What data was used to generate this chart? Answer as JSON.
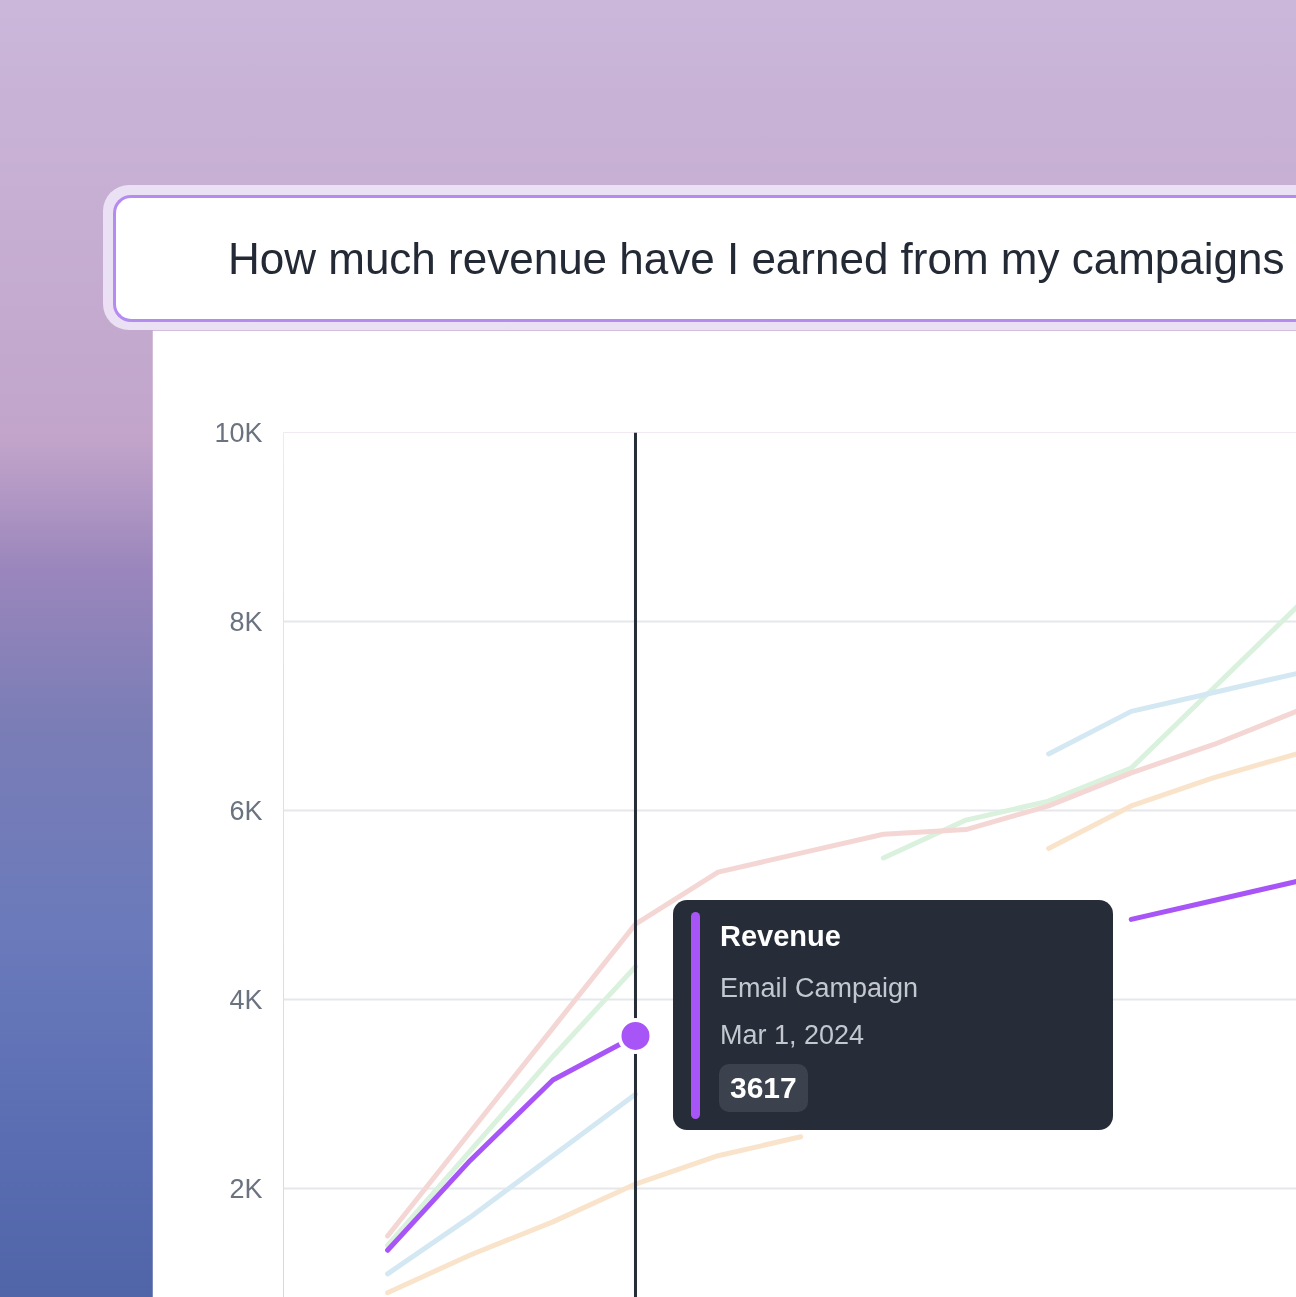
{
  "chart_data": {
    "type": "line",
    "title": "How much revenue have I earned from my campaigns",
    "categories": [
      null,
      null,
      null,
      null,
      null,
      null,
      null,
      null,
      null,
      null,
      null,
      null
    ],
    "ylim": [
      850,
      10000
    ],
    "yticks": [
      {
        "value": 2000,
        "label": "2K"
      },
      {
        "value": 4000,
        "label": "4K"
      },
      {
        "value": 6000,
        "label": "6K"
      },
      {
        "value": 8000,
        "label": "8K"
      },
      {
        "value": 10000,
        "label": "10K"
      }
    ],
    "grid": "y",
    "tick_labels": "y",
    "annotations": [
      "Revenue",
      "Mar 1, 2024",
      "3617"
    ],
    "series": [
      {
        "color": "#d9f1dd",
        "values": [
          1400,
          2400,
          3400,
          4350,
          null,
          null,
          5500,
          5900,
          6100,
          6450,
          7300,
          8150
        ]
      },
      {
        "color": "#d4e8f3",
        "values": [
          1100,
          1700,
          2350,
          3000,
          null,
          null,
          null,
          null,
          6600,
          7050,
          7250,
          7450
        ]
      },
      {
        "color": "#f9e4cb",
        "values": [
          900,
          1300,
          1650,
          2050,
          2350,
          2550,
          null,
          null,
          5600,
          6050,
          6350,
          6600
        ]
      },
      {
        "color": "#f4d7d4",
        "values": [
          1500,
          2600,
          3700,
          4800,
          5350,
          5550,
          5750,
          5800,
          6050,
          6400,
          6700,
          7050
        ]
      },
      {
        "name": "Email Campaign",
        "color": "#a855f7",
        "values": [
          1350,
          2300,
          3150,
          3617,
          null,
          null,
          null,
          null,
          null,
          4850,
          5050,
          5250
        ]
      },
      {
        "type": "scatter",
        "marker": "circle",
        "color": "#a855f7",
        "values": [
          null,
          null,
          null,
          3617,
          null,
          null,
          null,
          null,
          null,
          null,
          null,
          null
        ]
      }
    ]
  }
}
